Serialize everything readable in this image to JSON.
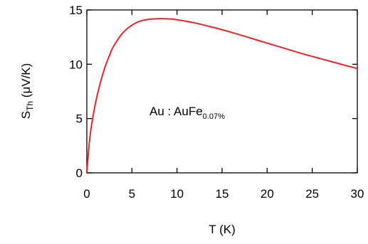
{
  "chart_data": {
    "type": "line",
    "xlabel": "T (K)",
    "ylabel": {
      "main": "S",
      "sub": "Th",
      "unit": " (μV/K)"
    },
    "annotation": {
      "main": "Au : AuFe",
      "sub": "0.07%"
    },
    "xlim": [
      0,
      30
    ],
    "ylim": [
      0,
      15
    ],
    "x_ticks": [
      0,
      5,
      10,
      15,
      20,
      25,
      30
    ],
    "y_ticks": [
      0,
      5,
      10,
      15
    ],
    "grid": false,
    "series": [
      {
        "color": "#e8262a",
        "x": [
          0,
          0.3,
          0.6,
          1,
          1.5,
          2,
          2.5,
          3,
          4,
          5,
          6,
          7,
          8,
          9,
          10,
          12,
          14,
          16,
          18,
          20,
          22,
          24,
          26,
          28,
          30
        ],
        "y": [
          0,
          3.0,
          4.8,
          6.6,
          8.3,
          9.7,
          10.8,
          11.7,
          12.9,
          13.6,
          14.0,
          14.15,
          14.2,
          14.18,
          14.1,
          13.8,
          13.4,
          12.95,
          12.45,
          11.95,
          11.45,
          10.95,
          10.5,
          10.05,
          9.6
        ]
      }
    ]
  }
}
